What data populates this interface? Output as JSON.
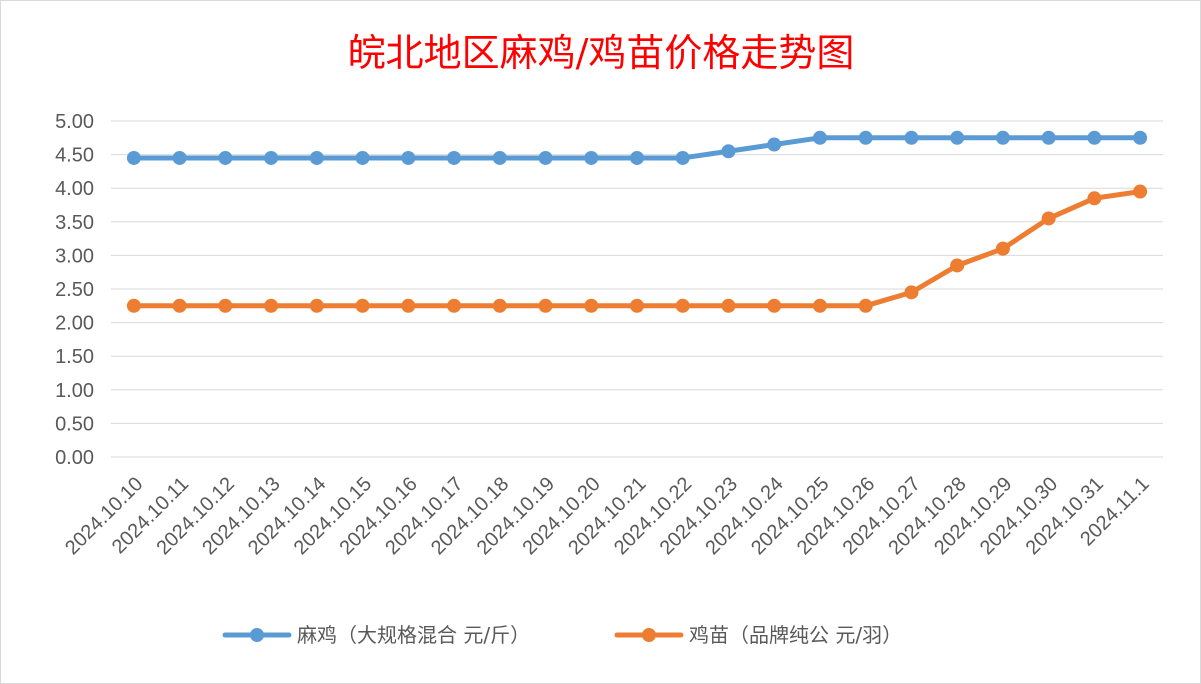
{
  "chart_data": {
    "type": "line",
    "title": "皖北地区麻鸡/鸡苗价格走势图",
    "categories": [
      "2024.10.10",
      "2024.10.11",
      "2024.10.12",
      "2024.10.13",
      "2024.10.14",
      "2024.10.15",
      "2024.10.16",
      "2024.10.17",
      "2024.10.18",
      "2024.10.19",
      "2024.10.20",
      "2024.10.21",
      "2024.10.22",
      "2024.10.23",
      "2024.10.24",
      "2024.10.25",
      "2024.10.26",
      "2024.10.27",
      "2024.10.28",
      "2024.10.29",
      "2024.10.30",
      "2024.10.31",
      "2024.11.1"
    ],
    "series": [
      {
        "name": "麻鸡（大规格混合 元/斤）",
        "color": "#5b9bd5",
        "values": [
          4.45,
          4.45,
          4.45,
          4.45,
          4.45,
          4.45,
          4.45,
          4.45,
          4.45,
          4.45,
          4.45,
          4.45,
          4.45,
          4.55,
          4.65,
          4.75,
          4.75,
          4.75,
          4.75,
          4.75,
          4.75,
          4.75,
          4.75
        ]
      },
      {
        "name": "鸡苗（品牌纯公 元/羽）",
        "color": "#ed7d31",
        "values": [
          2.25,
          2.25,
          2.25,
          2.25,
          2.25,
          2.25,
          2.25,
          2.25,
          2.25,
          2.25,
          2.25,
          2.25,
          2.25,
          2.25,
          2.25,
          2.25,
          2.25,
          2.45,
          2.85,
          3.1,
          3.55,
          3.85,
          3.95
        ]
      }
    ],
    "yticks": [
      "0.00",
      "0.50",
      "1.00",
      "1.50",
      "2.00",
      "2.50",
      "3.00",
      "3.50",
      "4.00",
      "4.50",
      "5.00"
    ],
    "ylim": [
      0,
      5
    ],
    "grid": true,
    "legend": "bottom"
  }
}
